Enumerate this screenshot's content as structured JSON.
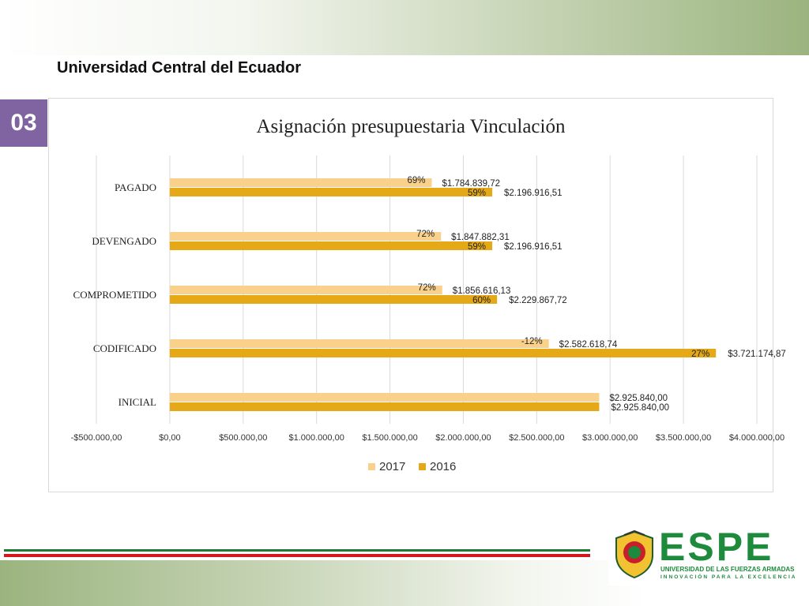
{
  "header": {
    "org_title": "Universidad Central del Ecuador",
    "slide_number": "03"
  },
  "chart_data": {
    "type": "bar",
    "orientation": "horizontal",
    "title": "Asignación presupuestaria Vinculación",
    "categories": [
      "PAGADO",
      "DEVENGADO",
      "COMPROMETIDO",
      "CODIFICADO",
      "INICIAL"
    ],
    "series": [
      {
        "name": "2017",
        "color": "#f9d18a",
        "values": [
          1784839.72,
          1847882.31,
          1856616.13,
          2582618.74,
          2925840.0
        ],
        "labels": [
          "$1.784.839,72",
          "$1.847.882,31",
          "$1.856.616,13",
          "$2.582.618,74",
          "$2.925.840,00"
        ],
        "pct": [
          "69%",
          "72%",
          "72%",
          "-12%",
          ""
        ]
      },
      {
        "name": "2016",
        "color": "#e5a816",
        "values": [
          2196916.51,
          2196916.51,
          2229867.72,
          3721174.87,
          2925840.0
        ],
        "labels": [
          "$2.196.916,51",
          "$2.196.916,51",
          "$2.229.867,72",
          "$3.721.174,87",
          "$2.925.840,00"
        ],
        "pct": [
          "59%",
          "59%",
          "60%",
          "27%",
          ""
        ]
      }
    ],
    "xlim": [
      -500000,
      4000000
    ],
    "xticks": [
      -500000,
      0,
      500000,
      1000000,
      1500000,
      2000000,
      2500000,
      3000000,
      3500000,
      4000000
    ],
    "xtick_labels": [
      "-$500.000,00",
      "$0,00",
      "$500.000,00",
      "$1.000.000,00",
      "$1.500.000,00",
      "$2.000.000,00",
      "$2.500.000,00",
      "$3.000.000,00",
      "$3.500.000,00",
      "$4.000.000,00"
    ],
    "grid": true,
    "legend_position": "bottom"
  },
  "footer": {
    "logo_text": "ESPE",
    "logo_subtitle": "UNIVERSIDAD DE LAS FUERZAS ARMADAS",
    "logo_tagline": "INNOVACIÓN PARA LA EXCELENCIA"
  }
}
